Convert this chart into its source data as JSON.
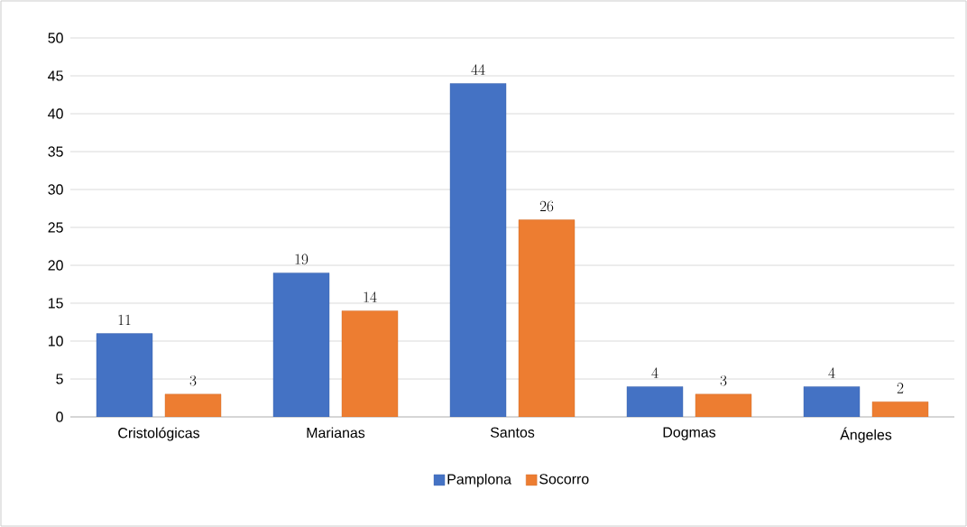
{
  "chart_data": {
    "type": "bar",
    "categories": [
      "Cristológicas",
      "Marianas",
      "Santos",
      "Dogmas",
      "Ángeles"
    ],
    "series": [
      {
        "name": "Pamplona",
        "color": "#4472c4",
        "values": [
          11,
          19,
          44,
          4,
          4
        ]
      },
      {
        "name": "Socorro",
        "color": "#ed7d31",
        "values": [
          3,
          14,
          26,
          3,
          2
        ]
      }
    ],
    "ylim": [
      0,
      50
    ],
    "yticks": [
      0,
      5,
      10,
      15,
      20,
      25,
      30,
      35,
      40,
      45,
      50
    ],
    "grid": "y",
    "legend": "bottom",
    "data_labels": true
  }
}
